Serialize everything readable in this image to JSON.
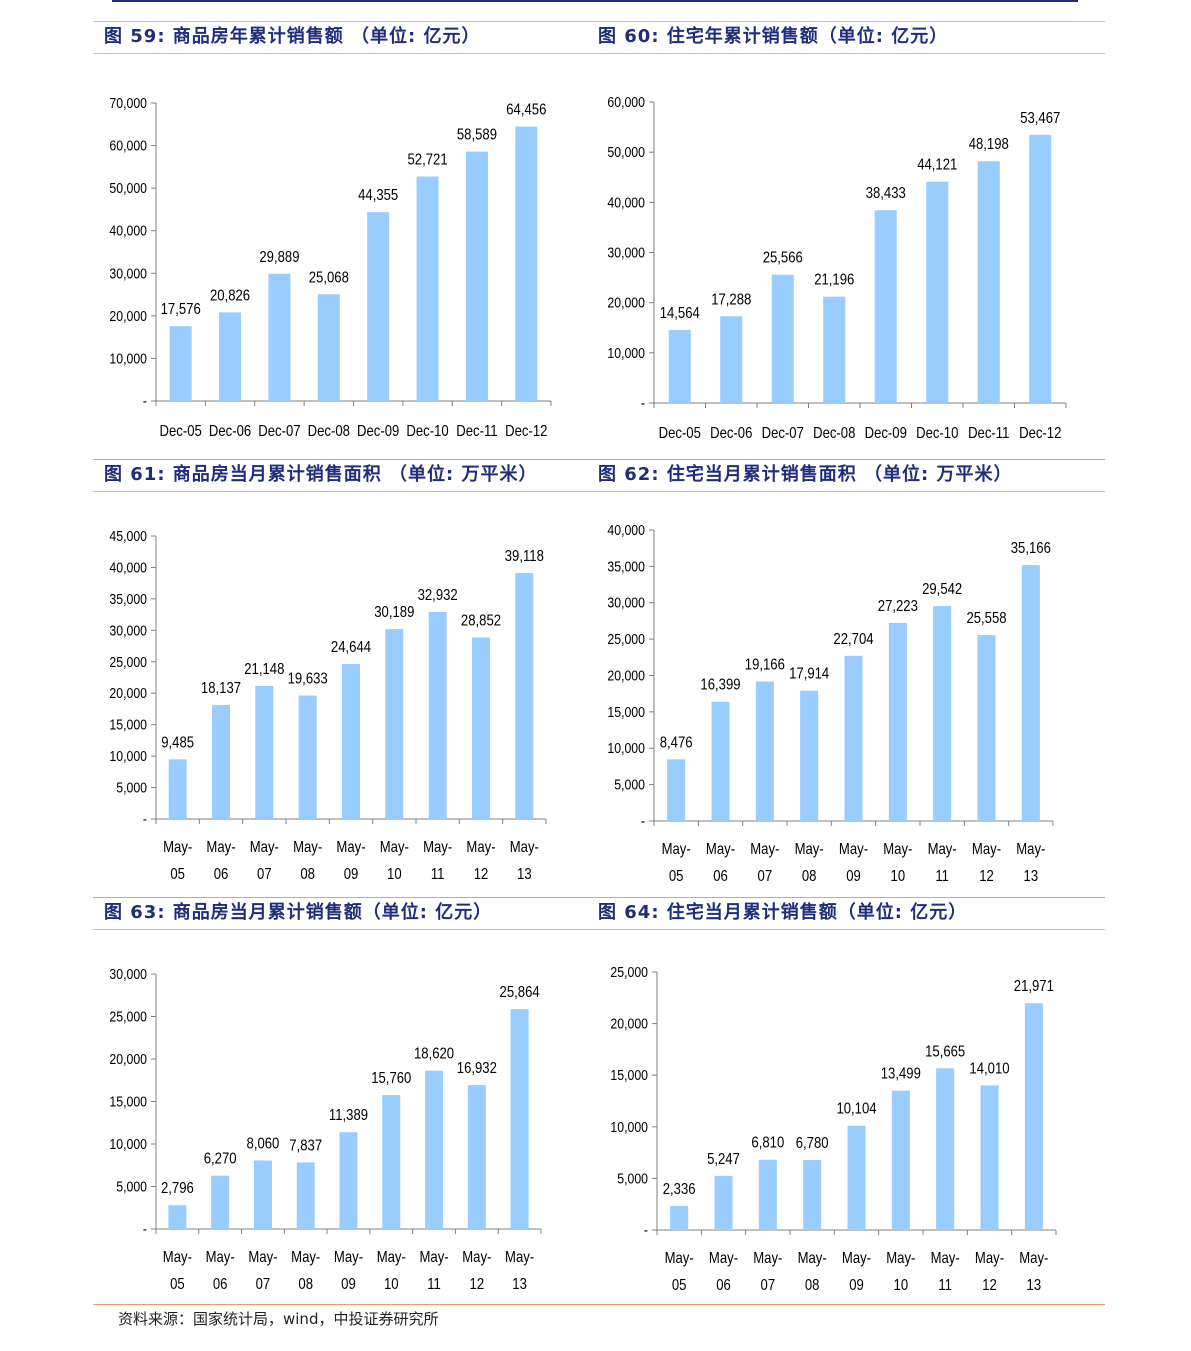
{
  "colors": {
    "bar": "#99ccff",
    "axis": "#808080",
    "title": "#1f2d7a",
    "rule": "#f4b183"
  },
  "sections": [
    {
      "left_title": "图 59: 商品房年累计销售额 （单位: 亿元）",
      "right_title": "图 60: 住宅年累计销售额（单位: 亿元）"
    },
    {
      "left_title": "图 61: 商品房当月累计销售面积 （单位: 万平米）",
      "right_title": "图 62: 住宅当月累计销售面积 （单位: 万平米）"
    },
    {
      "left_title": "图 63: 商品房当月累计销售额（单位: 亿元）",
      "right_title": "图 64: 住宅当月累计销售额（单位: 亿元）"
    }
  ],
  "source": "资料来源：国家统计局，wind，中投证券研究所",
  "chart_data": [
    {
      "type": "bar",
      "categories": [
        "Dec-05",
        "Dec-06",
        "Dec-07",
        "Dec-08",
        "Dec-09",
        "Dec-10",
        "Dec-11",
        "Dec-12"
      ],
      "values": [
        17576,
        20826,
        29889,
        25068,
        44355,
        52721,
        58589,
        64456
      ],
      "labels": [
        "17,576",
        "20,826",
        "29,889",
        "25,068",
        "44,355",
        "52,721",
        "58,589",
        "64,456"
      ],
      "ylim": [
        0,
        70000
      ],
      "yticks": [
        "-",
        "10,000",
        "20,000",
        "30,000",
        "40,000",
        "50,000",
        "60,000",
        "70,000"
      ],
      "grid": false,
      "legend": "none"
    },
    {
      "type": "bar",
      "categories": [
        "Dec-05",
        "Dec-06",
        "Dec-07",
        "Dec-08",
        "Dec-09",
        "Dec-10",
        "Dec-11",
        "Dec-12"
      ],
      "values": [
        14564,
        17288,
        25566,
        21196,
        38433,
        44121,
        48198,
        53467
      ],
      "labels": [
        "14,564",
        "17,288",
        "25,566",
        "21,196",
        "38,433",
        "44,121",
        "48,198",
        "53,467"
      ],
      "ylim": [
        0,
        60000
      ],
      "yticks": [
        "-",
        "10,000",
        "20,000",
        "30,000",
        "40,000",
        "50,000",
        "60,000"
      ],
      "grid": false,
      "legend": "none"
    },
    {
      "type": "bar",
      "categories": [
        [
          "May-",
          "05"
        ],
        [
          "May-",
          "06"
        ],
        [
          "May-",
          "07"
        ],
        [
          "May-",
          "08"
        ],
        [
          "May-",
          "09"
        ],
        [
          "May-",
          "10"
        ],
        [
          "May-",
          "11"
        ],
        [
          "May-",
          "12"
        ],
        [
          "May-",
          "13"
        ]
      ],
      "values": [
        9485,
        18137,
        21148,
        19633,
        24644,
        30189,
        32932,
        28852,
        39118
      ],
      "labels": [
        "9,485",
        "18,137",
        "21,148",
        "19,633",
        "24,644",
        "30,189",
        "32,932",
        "28,852",
        "39,118"
      ],
      "ylim": [
        0,
        45000
      ],
      "yticks": [
        "-",
        "5,000",
        "10,000",
        "15,000",
        "20,000",
        "25,000",
        "30,000",
        "35,000",
        "40,000",
        "45,000"
      ],
      "grid": false,
      "legend": "none"
    },
    {
      "type": "bar",
      "categories": [
        [
          "May-",
          "05"
        ],
        [
          "May-",
          "06"
        ],
        [
          "May-",
          "07"
        ],
        [
          "May-",
          "08"
        ],
        [
          "May-",
          "09"
        ],
        [
          "May-",
          "10"
        ],
        [
          "May-",
          "11"
        ],
        [
          "May-",
          "12"
        ],
        [
          "May-",
          "13"
        ]
      ],
      "values": [
        8476,
        16399,
        19166,
        17914,
        22704,
        27223,
        29542,
        25558,
        35166
      ],
      "labels": [
        "8,476",
        "16,399",
        "19,166",
        "17,914",
        "22,704",
        "27,223",
        "29,542",
        "25,558",
        "35,166"
      ],
      "ylim": [
        0,
        40000
      ],
      "yticks": [
        "-",
        "5,000",
        "10,000",
        "15,000",
        "20,000",
        "25,000",
        "30,000",
        "35,000",
        "40,000"
      ],
      "grid": false,
      "legend": "none"
    },
    {
      "type": "bar",
      "categories": [
        [
          "May-",
          "05"
        ],
        [
          "May-",
          "06"
        ],
        [
          "May-",
          "07"
        ],
        [
          "May-",
          "08"
        ],
        [
          "May-",
          "09"
        ],
        [
          "May-",
          "10"
        ],
        [
          "May-",
          "11"
        ],
        [
          "May-",
          "12"
        ],
        [
          "May-",
          "13"
        ]
      ],
      "values": [
        2796,
        6270,
        8060,
        7837,
        11389,
        15760,
        18620,
        16932,
        25864
      ],
      "labels": [
        "2,796",
        "6,270",
        "8,060",
        "7,837",
        "11,389",
        "15,760",
        "18,620",
        "16,932",
        "25,864"
      ],
      "ylim": [
        0,
        30000
      ],
      "yticks": [
        "-",
        "5,000",
        "10,000",
        "15,000",
        "20,000",
        "25,000",
        "30,000"
      ],
      "grid": false,
      "legend": "none"
    },
    {
      "type": "bar",
      "categories": [
        [
          "May-",
          "05"
        ],
        [
          "May-",
          "06"
        ],
        [
          "May-",
          "07"
        ],
        [
          "May-",
          "08"
        ],
        [
          "May-",
          "09"
        ],
        [
          "May-",
          "10"
        ],
        [
          "May-",
          "11"
        ],
        [
          "May-",
          "12"
        ],
        [
          "May-",
          "13"
        ]
      ],
      "values": [
        2336,
        5247,
        6810,
        6780,
        10104,
        13499,
        15665,
        14010,
        21971
      ],
      "labels": [
        "2,336",
        "5,247",
        "6,810",
        "6,780",
        "10,104",
        "13,499",
        "15,665",
        "14,010",
        "21,971"
      ],
      "ylim": [
        0,
        25000
      ],
      "yticks": [
        "-",
        "5,000",
        "10,000",
        "15,000",
        "20,000",
        "25,000"
      ],
      "grid": false,
      "legend": "none"
    }
  ]
}
